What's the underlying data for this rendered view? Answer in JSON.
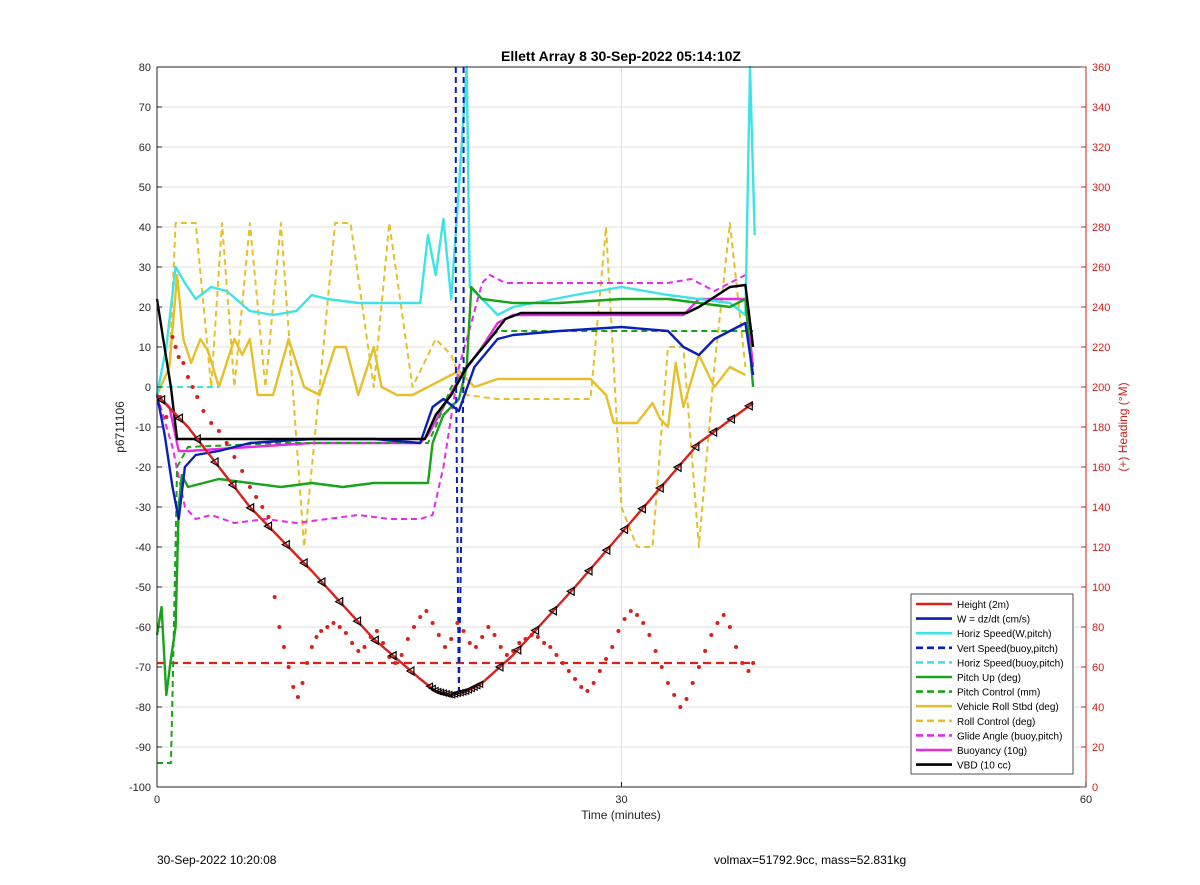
{
  "chart_data": {
    "type": "line",
    "title": "Ellett Array 8 30-Sep-2022 05:14:10Z",
    "xlabel": "Time (minutes)",
    "ylabel": "p6711106",
    "ylabel_right": "(+) Heading (°M)",
    "xlim": [
      0,
      60
    ],
    "ylim": [
      -100,
      80
    ],
    "ylim_right": [
      0,
      360
    ],
    "x_ticks": [
      "0",
      "30",
      "60"
    ],
    "y_ticks": [
      "80",
      "70",
      "60",
      "50",
      "40",
      "30",
      "20",
      "10",
      "0",
      "-10",
      "-20",
      "-30",
      "-40",
      "-50",
      "-60",
      "-70",
      "-80",
      "-90",
      "-100"
    ],
    "y_ticks_right": [
      "360",
      "340",
      "320",
      "300",
      "280",
      "260",
      "240",
      "220",
      "200",
      "180",
      "160",
      "140",
      "120",
      "100",
      "80",
      "60",
      "40",
      "20",
      "0"
    ],
    "grid": true,
    "legend_position": "bottom-right",
    "colors": {
      "red": "#d9201c",
      "blue": "#0a1fb8",
      "cyan": "#3fe3e6",
      "green": "#1aa31a",
      "yellow": "#e6c02a",
      "magenta": "#e62be6",
      "black": "#000000",
      "right_axis": "#c9211e",
      "grid": "#e2e2e2"
    },
    "series": [
      {
        "name": "Height (2m)",
        "color": "#d9201c",
        "style": "solid",
        "x": [
          0,
          2,
          6,
          10,
          14,
          17,
          18,
          19,
          20,
          21,
          23,
          27,
          31,
          35,
          38.5
        ],
        "y": [
          -2,
          -10,
          -30,
          -46,
          -63,
          -73,
          -76,
          -77,
          -76,
          -74,
          -67,
          -50,
          -32,
          -14,
          -4
        ]
      },
      {
        "name": "W = dz/dt (cm/s)",
        "color": "#0a1fb8",
        "style": "solid",
        "x": [
          0,
          0.5,
          1,
          1.4,
          1.8,
          2.5,
          4,
          6,
          10,
          14,
          17,
          17.8,
          18.5,
          19.5,
          20.5,
          22,
          23,
          26,
          30,
          33,
          34,
          35,
          36,
          37,
          38,
          38.5
        ],
        "y": [
          -2,
          -12,
          -25,
          -33,
          -20,
          -17,
          -16,
          -14,
          -13,
          -13,
          -14,
          -5,
          -3,
          -6,
          5,
          12,
          13,
          14,
          15,
          14,
          10,
          8,
          12,
          14,
          16,
          3
        ]
      },
      {
        "name": "Horiz Speed(W,pitch)",
        "color": "#3fe3e6",
        "style": "solid",
        "x": [
          0,
          0.6,
          1.2,
          1.8,
          2.5,
          3.5,
          4.5,
          6,
          7.5,
          9,
          10,
          11,
          13,
          15,
          17,
          17.5,
          18,
          18.5,
          19,
          19.5,
          20,
          20.2,
          21,
          22,
          23,
          27,
          30,
          33,
          35,
          37,
          38,
          38.3,
          38.6
        ],
        "y": [
          -2,
          10,
          30,
          26,
          22,
          25,
          24,
          19,
          18,
          19,
          23,
          22,
          21,
          21,
          21,
          38,
          28,
          42,
          22,
          50,
          80,
          25,
          22,
          18,
          20,
          23,
          25,
          23,
          22,
          21,
          18,
          80,
          38
        ]
      },
      {
        "name": "Vert Speed(buoy,pitch)",
        "color": "#0a1fb8",
        "style": "dashed",
        "x": [
          19.3,
          19.3,
          19.5,
          19.8,
          19.8
        ],
        "y": [
          80,
          8,
          -77,
          5,
          80
        ]
      },
      {
        "name": "Horiz Speed(buoy,pitch)",
        "color": "#3fe3e6",
        "style": "dashed",
        "x": [
          0,
          1,
          2,
          3,
          4
        ],
        "y": [
          0,
          0,
          0,
          0,
          0
        ]
      },
      {
        "name": "Pitch Up (deg)",
        "color": "#1aa31a",
        "style": "solid",
        "x": [
          0,
          0.3,
          0.6,
          0.9,
          1.2,
          1.4,
          1.6,
          2,
          3,
          4,
          6,
          8,
          10,
          12,
          14,
          16,
          17.5,
          17.8,
          18.5,
          19.5,
          20,
          20.3,
          21,
          23,
          26,
          30,
          33,
          35,
          37,
          38,
          38.5
        ],
        "y": [
          -62,
          -55,
          -77,
          -68,
          -60,
          -30,
          -22,
          -25,
          -24,
          -23,
          -24,
          -25,
          -24,
          -25,
          -24,
          -24,
          -24,
          -14,
          -7,
          -3,
          5,
          25,
          22,
          21,
          21,
          22,
          22,
          21,
          20,
          22,
          0
        ]
      },
      {
        "name": "Pitch Control (mm)",
        "color": "#1aa31a",
        "style": "dashed",
        "x": [
          0,
          0.9,
          1.0,
          1.3,
          2,
          8,
          16,
          17.5,
          18,
          19,
          21,
          22,
          30,
          35,
          38.5
        ],
        "y": [
          -94,
          -94,
          -77,
          -20,
          -15,
          -14,
          -14,
          -14,
          -10,
          0,
          10,
          14,
          14,
          14,
          14
        ]
      },
      {
        "name": "Vehicle Roll Stbd (deg)",
        "color": "#e6c02a",
        "style": "solid",
        "x": [
          0,
          0.8,
          1.3,
          1.7,
          2.2,
          2.8,
          3.3,
          4,
          5,
          5.5,
          6,
          6.5,
          7.5,
          8.5,
          9.5,
          10.5,
          11.5,
          12.2,
          13,
          14,
          14.5,
          15.5,
          16.5,
          17.5,
          18.5,
          19.5,
          20.5,
          22,
          25,
          28,
          29,
          29.5,
          31,
          32,
          32.5,
          33,
          33.5,
          34,
          35,
          36,
          37,
          38
        ],
        "y": [
          -2,
          5,
          28,
          12,
          6,
          12,
          9,
          0,
          12,
          8,
          12,
          -2,
          -2,
          12,
          0,
          -2,
          10,
          10,
          -2,
          10,
          0,
          -2,
          -2,
          0,
          2,
          4,
          0,
          2,
          2,
          2,
          -2,
          -9,
          -9,
          -4,
          -8,
          -10,
          6,
          -5,
          8,
          0,
          5,
          3
        ]
      },
      {
        "name": "Roll Control (deg)",
        "color": "#e6c02a",
        "style": "dashed",
        "x": [
          0,
          0.8,
          1.2,
          1.8,
          2.5,
          3.5,
          4.2,
          5,
          6,
          7,
          8,
          9.5,
          10.5,
          11.5,
          12.5,
          14,
          15,
          16.5,
          18,
          19,
          20,
          22,
          26,
          28,
          29,
          30,
          31,
          32,
          33,
          34,
          35,
          36,
          37,
          38
        ],
        "y": [
          -2,
          5,
          41,
          41,
          41,
          0,
          41,
          0,
          41,
          0,
          41,
          -40,
          0,
          41,
          41,
          0,
          41,
          0,
          12,
          8,
          -2,
          -3,
          -3,
          -3,
          40,
          -30,
          -40,
          -40,
          10,
          10,
          -40,
          5,
          41,
          5
        ]
      },
      {
        "name": "Glide Angle (buoy,pitch)",
        "color": "#e62be6",
        "style": "dashed",
        "x": [
          0,
          1,
          1.8,
          2.5,
          3.5,
          5,
          7,
          9,
          11,
          13,
          15,
          17,
          17.8,
          18.5,
          19.5,
          20.3,
          21,
          21.5,
          22.5,
          25,
          30,
          33,
          34.5,
          36,
          37,
          38
        ],
        "y": [
          -2,
          -15,
          -30,
          -33,
          -32,
          -34,
          -33,
          -34,
          -33,
          -32,
          -33,
          -33,
          -32,
          -20,
          5,
          16,
          26,
          28,
          26,
          26,
          26,
          26,
          27,
          24,
          26,
          28
        ]
      },
      {
        "name": "Buoyancy (10g)",
        "color": "#e62be6",
        "style": "solid",
        "x": [
          0,
          0.8,
          1.4,
          2,
          6,
          10,
          14,
          17,
          17.5,
          18.5,
          19.5,
          21,
          22,
          23,
          27,
          30,
          34,
          35,
          36,
          38,
          38.5
        ],
        "y": [
          -2,
          -5,
          -16,
          -16,
          -15,
          -14,
          -14,
          -14,
          -12,
          -5,
          2,
          10,
          16,
          18,
          18,
          18,
          18,
          22,
          22,
          22,
          5
        ]
      },
      {
        "name": "VBD (10 cc)",
        "color": "#000000",
        "style": "solid",
        "x": [
          0,
          0.4,
          0.9,
          1.3,
          6,
          12,
          16,
          17.3,
          18,
          19,
          20,
          21.5,
          22.5,
          23.5,
          28,
          32,
          34.2,
          35,
          37,
          38,
          38.5
        ],
        "y": [
          22,
          12,
          0,
          -13,
          -13,
          -13,
          -13,
          -13,
          -7,
          -2,
          5,
          12,
          17,
          18.5,
          18.5,
          18.5,
          18.5,
          20,
          25,
          25.5,
          10
        ]
      }
    ],
    "heading_scatter": {
      "axis": "right",
      "color": "#d9201c",
      "x": [
        0.2,
        0.6,
        1.0,
        1.2,
        1.4,
        1.7,
        2.0,
        2.3,
        2.6,
        3.0,
        3.5,
        4.0,
        4.5,
        5.0,
        5.5,
        6.0,
        6.4,
        6.8,
        7.2,
        7.6,
        7.9,
        8.2,
        8.5,
        8.8,
        9.1,
        9.4,
        9.7,
        10.0,
        10.3,
        10.6,
        11.0,
        11.4,
        11.8,
        12.2,
        12.6,
        13.0,
        13.4,
        13.8,
        14.2,
        14.6,
        15.0,
        15.4,
        15.8,
        16.2,
        16.6,
        17.0,
        17.4,
        17.8,
        18.2,
        18.6,
        19.0,
        19.4,
        19.8,
        20.2,
        20.6,
        21.0,
        21.4,
        21.8,
        22.2,
        22.6,
        23.0,
        23.4,
        23.8,
        24.2,
        24.6,
        25.0,
        25.4,
        25.8,
        26.2,
        26.6,
        27.0,
        27.4,
        27.8,
        28.2,
        28.6,
        29.0,
        29.4,
        29.8,
        30.2,
        30.6,
        31.0,
        31.4,
        31.8,
        32.2,
        32.6,
        33.0,
        33.4,
        33.8,
        34.2,
        34.6,
        35.0,
        35.4,
        35.8,
        36.2,
        36.6,
        37.0,
        37.4,
        37.8,
        38.2,
        38.5
      ],
      "y": [
        195,
        185,
        225,
        220,
        215,
        212,
        205,
        200,
        195,
        188,
        182,
        178,
        172,
        165,
        158,
        150,
        145,
        140,
        135,
        95,
        80,
        70,
        60,
        50,
        45,
        52,
        62,
        70,
        75,
        78,
        80,
        82,
        80,
        77,
        72,
        68,
        70,
        75,
        78,
        72,
        65,
        62,
        66,
        74,
        80,
        85,
        88,
        82,
        76,
        70,
        74,
        82,
        78,
        72,
        70,
        75,
        80,
        76,
        70,
        66,
        68,
        72,
        74,
        76,
        75,
        72,
        70,
        66,
        62,
        58,
        54,
        50,
        48,
        52,
        58,
        64,
        70,
        78,
        84,
        88,
        86,
        82,
        76,
        68,
        60,
        52,
        46,
        40,
        44,
        52,
        60,
        68,
        76,
        82,
        86,
        80,
        70,
        62,
        58,
        62
      ]
    },
    "legend": [
      {
        "label": "Height (2m)",
        "color": "#d9201c",
        "style": "solid"
      },
      {
        "label": "W = dz/dt (cm/s)",
        "color": "#0a1fb8",
        "style": "solid"
      },
      {
        "label": "Horiz Speed(W,pitch)",
        "color": "#3fe3e6",
        "style": "solid"
      },
      {
        "label": "Vert Speed(buoy,pitch)",
        "color": "#0a1fb8",
        "style": "dashed"
      },
      {
        "label": "Horiz Speed(buoy,pitch)",
        "color": "#3fe3e6",
        "style": "dashed"
      },
      {
        "label": "Pitch Up (deg)",
        "color": "#1aa31a",
        "style": "solid"
      },
      {
        "label": "Pitch Control (mm)",
        "color": "#1aa31a",
        "style": "dashed"
      },
      {
        "label": "Vehicle Roll Stbd (deg)",
        "color": "#e6c02a",
        "style": "solid"
      },
      {
        "label": "Roll Control (deg)",
        "color": "#e6c02a",
        "style": "dashed"
      },
      {
        "label": "Glide Angle (buoy,pitch)",
        "color": "#e62be6",
        "style": "dashed"
      },
      {
        "label": "Buoyancy (10g)",
        "color": "#e62be6",
        "style": "solid"
      },
      {
        "label": "VBD (10 cc)",
        "color": "#000000",
        "style": "solid"
      }
    ],
    "reference_line": {
      "color": "#d9201c",
      "style": "dashed",
      "y": -69
    }
  },
  "footer": {
    "left": "30-Sep-2022 10:20:08",
    "right": "volmax=51792.9cc, mass=52.831kg"
  }
}
